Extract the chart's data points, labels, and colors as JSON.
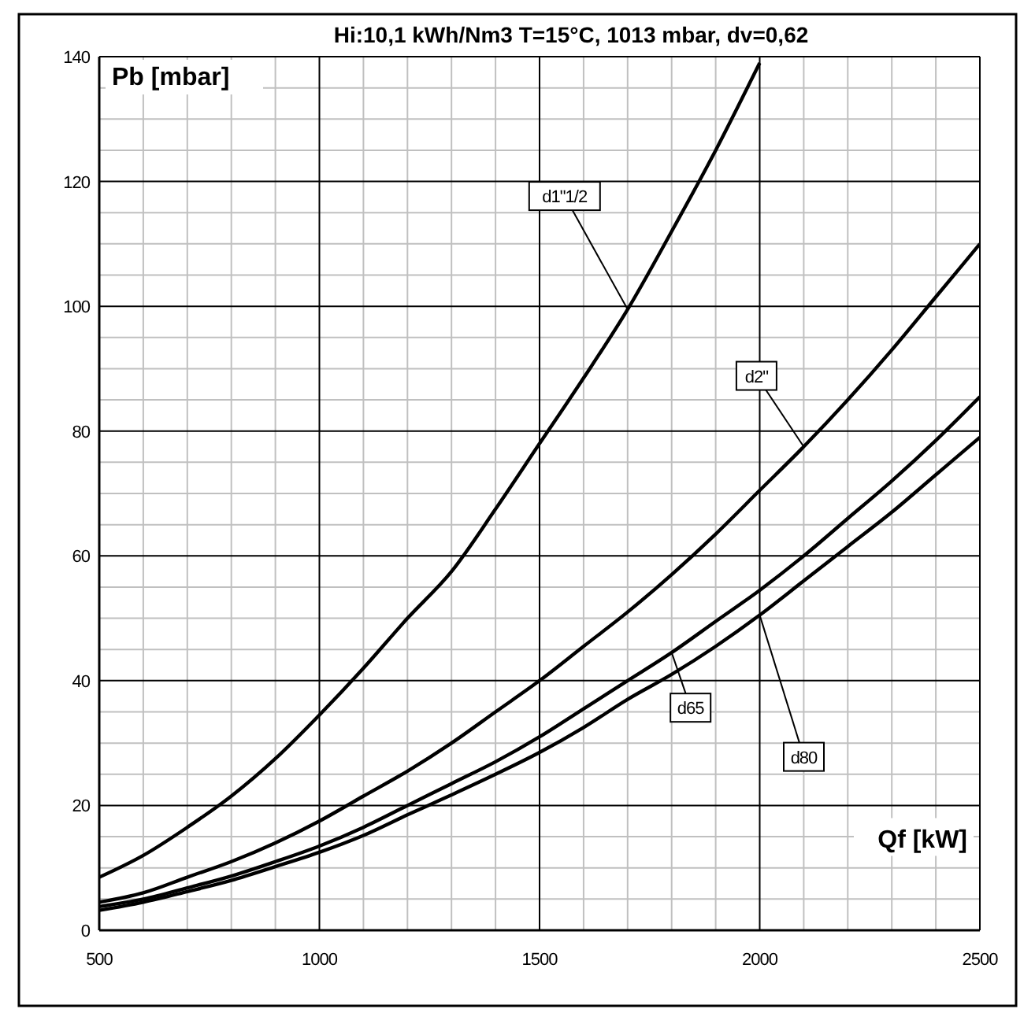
{
  "chart_data": {
    "type": "line",
    "title": "Hi:10,1 kWh/Nm3 T=15°C, 1013 mbar, dv=0,62",
    "xlabel": "Qf [kW]",
    "ylabel": "Pb [mbar]",
    "xlim": [
      500,
      2500
    ],
    "ylim": [
      0,
      140
    ],
    "xticks": [
      500,
      1000,
      1500,
      2000,
      2500
    ],
    "yticks": [
      0,
      20,
      40,
      60,
      80,
      100,
      120,
      140
    ],
    "grid": true,
    "marker": "none",
    "line_style": "solid",
    "series": [
      {
        "name": "d1\"1/2",
        "color": "#000000",
        "x": [
          500,
          600,
          700,
          800,
          900,
          1000,
          1100,
          1200,
          1300,
          1400,
          1500,
          1600,
          1700,
          1800,
          1900,
          2000
        ],
        "values": [
          8.5,
          12,
          16.5,
          21.5,
          27.5,
          34.5,
          42,
          50,
          57.5,
          67.5,
          78,
          88.5,
          99.5,
          112,
          125,
          139
        ]
      },
      {
        "name": "d2\"",
        "color": "#000000",
        "x": [
          500,
          600,
          700,
          800,
          900,
          1000,
          1100,
          1200,
          1300,
          1400,
          1500,
          1600,
          1700,
          1800,
          1900,
          2000,
          2100,
          2200,
          2300,
          2400,
          2500
        ],
        "values": [
          4.5,
          6,
          8.5,
          11,
          14,
          17.5,
          21.5,
          25.5,
          30,
          35,
          40,
          45.5,
          51,
          57,
          63.5,
          70.5,
          77.5,
          85,
          93,
          101.5,
          110
        ]
      },
      {
        "name": "d65",
        "color": "#000000",
        "x": [
          500,
          600,
          700,
          800,
          900,
          1000,
          1100,
          1200,
          1300,
          1400,
          1500,
          1600,
          1700,
          1800,
          1900,
          2000,
          2100,
          2200,
          2300,
          2400,
          2500
        ],
        "values": [
          3.8,
          5,
          6.8,
          8.7,
          11,
          13.5,
          16.5,
          20,
          23.5,
          27,
          31,
          35.5,
          40,
          44.5,
          49.5,
          54.5,
          60,
          66,
          72,
          78.5,
          85.5
        ]
      },
      {
        "name": "d80",
        "color": "#000000",
        "x": [
          500,
          600,
          700,
          800,
          900,
          1000,
          1100,
          1200,
          1300,
          1400,
          1500,
          1600,
          1700,
          1800,
          1900,
          2000,
          2100,
          2200,
          2300,
          2400,
          2500
        ],
        "values": [
          3.2,
          4.5,
          6.2,
          8,
          10.2,
          12.5,
          15.2,
          18.5,
          21.7,
          25,
          28.5,
          32.5,
          37,
          41,
          45.5,
          50.5,
          56,
          61.5,
          67,
          73,
          79
        ]
      }
    ]
  }
}
